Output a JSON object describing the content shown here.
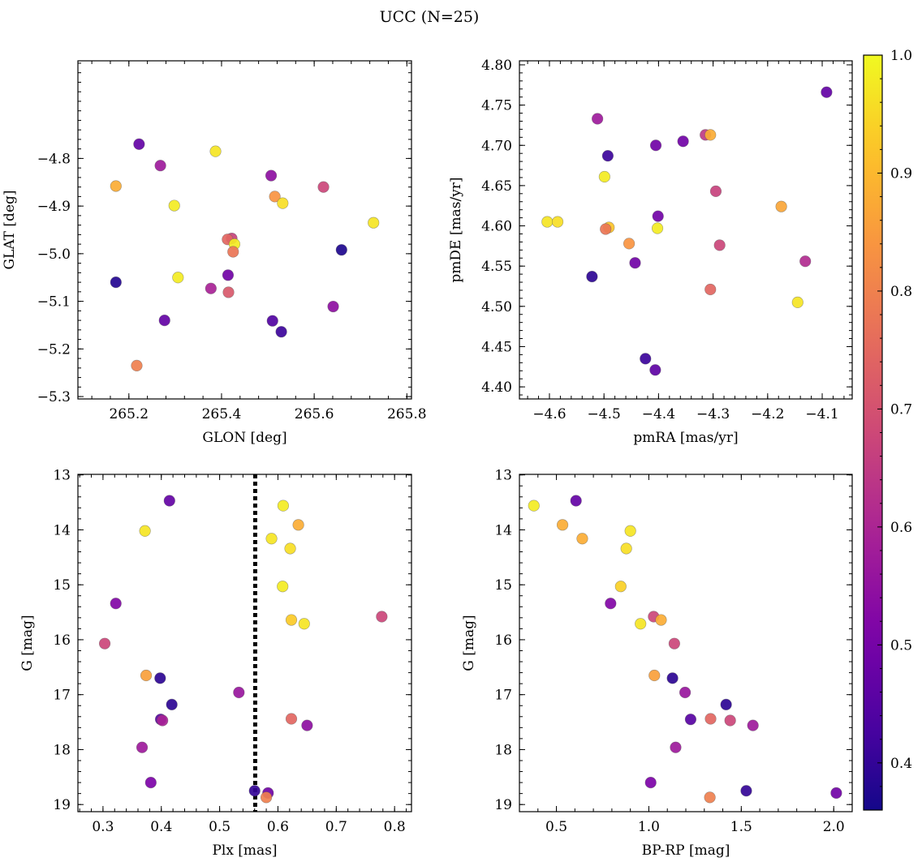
{
  "title": "UCC (N=25)",
  "colorbar": {
    "min": 0.36,
    "max": 1.0,
    "ticks": [
      0.4,
      0.5,
      0.6,
      0.7,
      0.8,
      0.9,
      1.0
    ],
    "tick_labels": [
      "0.4",
      "0.5",
      "0.6",
      "0.7",
      "0.8",
      "0.9",
      "1.0"
    ],
    "colormap": "plasma"
  },
  "chart_data": [
    {
      "type": "scatter",
      "xlabel": "GLON [deg]",
      "ylabel": "GLAT [deg]",
      "xlim": [
        265.09,
        265.81
      ],
      "ylim": [
        -5.305,
        -4.595
      ],
      "y_inverted": false,
      "xticks": [
        265.2,
        265.4,
        265.6,
        265.8
      ],
      "xtick_labels": [
        "265.2",
        "265.4",
        "265.6",
        "265.8"
      ],
      "yticks": [
        -4.8,
        -4.9,
        -5.0,
        -5.1,
        -5.2,
        -5.3
      ],
      "ytick_labels": [
        "−4.8",
        "−4.9",
        "−5.0",
        "−5.1",
        "−5.2",
        "−5.3"
      ],
      "x_minor_step": 0.04,
      "y_minor_step": 0.02,
      "points": [
        {
          "x": 265.222,
          "y": -4.77,
          "p": 0.48
        },
        {
          "x": 265.268,
          "y": -4.815,
          "p": 0.58
        },
        {
          "x": 265.387,
          "y": -4.785,
          "p": 0.97
        },
        {
          "x": 265.172,
          "y": -4.858,
          "p": 0.88
        },
        {
          "x": 265.507,
          "y": -4.836,
          "p": 0.55
        },
        {
          "x": 265.62,
          "y": -4.86,
          "p": 0.68
        },
        {
          "x": 265.515,
          "y": -4.88,
          "p": 0.84
        },
        {
          "x": 265.532,
          "y": -4.894,
          "p": 0.96
        },
        {
          "x": 265.298,
          "y": -4.899,
          "p": 0.98
        },
        {
          "x": 265.728,
          "y": -4.935,
          "p": 0.97
        },
        {
          "x": 265.422,
          "y": -4.968,
          "p": 0.67
        },
        {
          "x": 265.413,
          "y": -4.97,
          "p": 0.75
        },
        {
          "x": 265.428,
          "y": -4.98,
          "p": 0.98
        },
        {
          "x": 265.425,
          "y": -4.996,
          "p": 0.78
        },
        {
          "x": 265.659,
          "y": -4.992,
          "p": 0.38
        },
        {
          "x": 265.306,
          "y": -5.05,
          "p": 0.98
        },
        {
          "x": 265.414,
          "y": -5.045,
          "p": 0.5
        },
        {
          "x": 265.172,
          "y": -5.06,
          "p": 0.39
        },
        {
          "x": 265.377,
          "y": -5.073,
          "p": 0.6
        },
        {
          "x": 265.415,
          "y": -5.081,
          "p": 0.72
        },
        {
          "x": 265.641,
          "y": -5.111,
          "p": 0.55
        },
        {
          "x": 265.277,
          "y": -5.14,
          "p": 0.48
        },
        {
          "x": 265.51,
          "y": -5.141,
          "p": 0.45
        },
        {
          "x": 265.529,
          "y": -5.164,
          "p": 0.42
        },
        {
          "x": 265.217,
          "y": -5.235,
          "p": 0.8
        }
      ]
    },
    {
      "type": "scatter",
      "xlabel": "pmRA [mas/yr]",
      "ylabel": "pmDE [mas/yr]",
      "xlim": [
        -4.655,
        -4.045
      ],
      "ylim": [
        4.385,
        4.805
      ],
      "y_inverted": false,
      "xticks": [
        -4.6,
        -4.5,
        -4.4,
        -4.3,
        -4.2,
        -4.1
      ],
      "xtick_labels": [
        "−4.6",
        "−4.5",
        "−4.4",
        "−4.3",
        "−4.2",
        "−4.1"
      ],
      "yticks": [
        4.4,
        4.45,
        4.5,
        4.55,
        4.6,
        4.65,
        4.7,
        4.75,
        4.8
      ],
      "ytick_labels": [
        "4.40",
        "4.45",
        "4.50",
        "4.55",
        "4.60",
        "4.65",
        "4.70",
        "4.75",
        "4.80"
      ],
      "x_minor_step": 0.02,
      "y_minor_step": 0.01,
      "points": [
        {
          "x": -4.092,
          "y": 4.766,
          "p": 0.48
        },
        {
          "x": -4.512,
          "y": 4.733,
          "p": 0.58
        },
        {
          "x": -4.314,
          "y": 4.713,
          "p": 0.65
        },
        {
          "x": -4.305,
          "y": 4.713,
          "p": 0.88
        },
        {
          "x": -4.355,
          "y": 4.705,
          "p": 0.5
        },
        {
          "x": -4.405,
          "y": 4.7,
          "p": 0.5
        },
        {
          "x": -4.493,
          "y": 4.687,
          "p": 0.42
        },
        {
          "x": -4.499,
          "y": 4.661,
          "p": 0.98
        },
        {
          "x": -4.295,
          "y": 4.643,
          "p": 0.67
        },
        {
          "x": -4.175,
          "y": 4.624,
          "p": 0.87
        },
        {
          "x": -4.401,
          "y": 4.612,
          "p": 0.5
        },
        {
          "x": -4.604,
          "y": 4.605,
          "p": 0.97
        },
        {
          "x": -4.585,
          "y": 4.605,
          "p": 0.96
        },
        {
          "x": -4.491,
          "y": 4.598,
          "p": 0.92
        },
        {
          "x": -4.497,
          "y": 4.596,
          "p": 0.78
        },
        {
          "x": -4.402,
          "y": 4.597,
          "p": 0.98
        },
        {
          "x": -4.454,
          "y": 4.578,
          "p": 0.84
        },
        {
          "x": -4.288,
          "y": 4.576,
          "p": 0.68
        },
        {
          "x": -4.131,
          "y": 4.556,
          "p": 0.62
        },
        {
          "x": -4.443,
          "y": 4.554,
          "p": 0.5
        },
        {
          "x": -4.522,
          "y": 4.537,
          "p": 0.4
        },
        {
          "x": -4.305,
          "y": 4.521,
          "p": 0.75
        },
        {
          "x": -4.145,
          "y": 4.505,
          "p": 0.97
        },
        {
          "x": -4.424,
          "y": 4.435,
          "p": 0.42
        },
        {
          "x": -4.406,
          "y": 4.421,
          "p": 0.47
        }
      ]
    },
    {
      "type": "scatter",
      "xlabel": "Plx [mas]",
      "ylabel": "G [mag]",
      "xlim": [
        0.257,
        0.829
      ],
      "ylim": [
        19.13,
        12.99
      ],
      "y_inverted": true,
      "xticks": [
        0.3,
        0.4,
        0.5,
        0.6,
        0.7,
        0.8
      ],
      "xtick_labels": [
        "0.3",
        "0.4",
        "0.5",
        "0.6",
        "0.7",
        "0.8"
      ],
      "yticks": [
        13,
        14,
        15,
        16,
        17,
        18,
        19
      ],
      "ytick_labels": [
        "13",
        "14",
        "15",
        "16",
        "17",
        "18",
        "19"
      ],
      "x_minor_step": 0.02,
      "y_minor_step": 0.2,
      "vline": {
        "x": 0.561,
        "style": "dotted"
      },
      "points": [
        {
          "x": 0.414,
          "y": 13.47,
          "p": 0.48
        },
        {
          "x": 0.609,
          "y": 13.56,
          "p": 0.98
        },
        {
          "x": 0.635,
          "y": 13.91,
          "p": 0.88
        },
        {
          "x": 0.372,
          "y": 14.02,
          "p": 0.97
        },
        {
          "x": 0.589,
          "y": 14.16,
          "p": 0.97
        },
        {
          "x": 0.621,
          "y": 14.34,
          "p": 0.96
        },
        {
          "x": 0.608,
          "y": 15.03,
          "p": 0.98
        },
        {
          "x": 0.322,
          "y": 15.34,
          "p": 0.53
        },
        {
          "x": 0.778,
          "y": 15.58,
          "p": 0.68
        },
        {
          "x": 0.623,
          "y": 15.64,
          "p": 0.93
        },
        {
          "x": 0.645,
          "y": 15.71,
          "p": 0.97
        },
        {
          "x": 0.303,
          "y": 16.07,
          "p": 0.68
        },
        {
          "x": 0.374,
          "y": 16.65,
          "p": 0.86
        },
        {
          "x": 0.398,
          "y": 16.7,
          "p": 0.4
        },
        {
          "x": 0.533,
          "y": 16.96,
          "p": 0.57
        },
        {
          "x": 0.418,
          "y": 17.18,
          "p": 0.4
        },
        {
          "x": 0.623,
          "y": 17.44,
          "p": 0.75
        },
        {
          "x": 0.399,
          "y": 17.45,
          "p": 0.46
        },
        {
          "x": 0.402,
          "y": 17.47,
          "p": 0.6
        },
        {
          "x": 0.65,
          "y": 17.56,
          "p": 0.55
        },
        {
          "x": 0.367,
          "y": 17.96,
          "p": 0.58
        },
        {
          "x": 0.382,
          "y": 18.6,
          "p": 0.52
        },
        {
          "x": 0.56,
          "y": 18.75,
          "p": 0.41
        },
        {
          "x": 0.583,
          "y": 18.79,
          "p": 0.5
        },
        {
          "x": 0.58,
          "y": 18.87,
          "p": 0.8
        }
      ]
    },
    {
      "type": "scatter",
      "xlabel": "BP-RP [mag]",
      "ylabel": "G [mag]",
      "xlim": [
        0.3,
        2.1
      ],
      "ylim": [
        19.13,
        12.99
      ],
      "y_inverted": true,
      "xticks": [
        0.5,
        1.0,
        1.5,
        2.0
      ],
      "xtick_labels": [
        "0.5",
        "1.0",
        "1.5",
        "2.0"
      ],
      "yticks": [
        13,
        14,
        15,
        16,
        17,
        18,
        19
      ],
      "ytick_labels": [
        "13",
        "14",
        "15",
        "16",
        "17",
        "18",
        "19"
      ],
      "x_minor_step": 0.1,
      "y_minor_step": 0.2,
      "points": [
        {
          "x": 0.378,
          "y": 13.56,
          "p": 0.98
        },
        {
          "x": 0.606,
          "y": 13.47,
          "p": 0.48
        },
        {
          "x": 0.533,
          "y": 13.91,
          "p": 0.88
        },
        {
          "x": 0.9,
          "y": 14.02,
          "p": 0.97
        },
        {
          "x": 0.64,
          "y": 14.16,
          "p": 0.88
        },
        {
          "x": 0.878,
          "y": 14.34,
          "p": 0.96
        },
        {
          "x": 0.848,
          "y": 15.03,
          "p": 0.94
        },
        {
          "x": 0.793,
          "y": 15.34,
          "p": 0.53
        },
        {
          "x": 1.026,
          "y": 15.58,
          "p": 0.68
        },
        {
          "x": 1.066,
          "y": 15.64,
          "p": 0.88
        },
        {
          "x": 0.955,
          "y": 15.71,
          "p": 0.97
        },
        {
          "x": 1.138,
          "y": 16.07,
          "p": 0.68
        },
        {
          "x": 1.03,
          "y": 16.65,
          "p": 0.86
        },
        {
          "x": 1.128,
          "y": 16.7,
          "p": 0.4
        },
        {
          "x": 1.196,
          "y": 16.96,
          "p": 0.57
        },
        {
          "x": 1.418,
          "y": 17.18,
          "p": 0.4
        },
        {
          "x": 1.226,
          "y": 17.45,
          "p": 0.46
        },
        {
          "x": 1.334,
          "y": 17.44,
          "p": 0.75
        },
        {
          "x": 1.44,
          "y": 17.47,
          "p": 0.68
        },
        {
          "x": 1.563,
          "y": 17.56,
          "p": 0.58
        },
        {
          "x": 1.145,
          "y": 17.96,
          "p": 0.58
        },
        {
          "x": 1.01,
          "y": 18.6,
          "p": 0.52
        },
        {
          "x": 1.527,
          "y": 18.75,
          "p": 0.41
        },
        {
          "x": 2.014,
          "y": 18.79,
          "p": 0.5
        },
        {
          "x": 1.33,
          "y": 18.87,
          "p": 0.8
        }
      ]
    }
  ]
}
